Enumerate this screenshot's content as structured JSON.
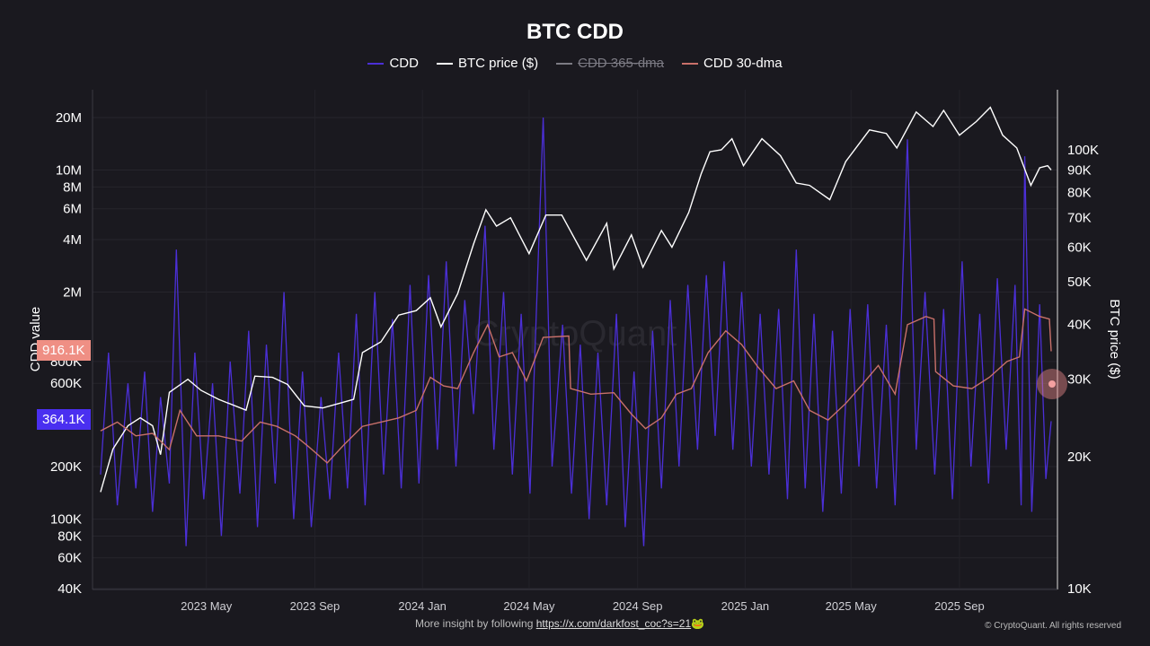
{
  "chart_data": {
    "type": "line",
    "title": "BTC CDD",
    "legend": [
      {
        "name": "CDD",
        "color": "#4b2fd6",
        "visible": true
      },
      {
        "name": "BTC price ($)",
        "color": "#ffffff",
        "visible": true
      },
      {
        "name": "CDD 365-dma",
        "color": "#7c7b84",
        "visible": false
      },
      {
        "name": "CDD 30-dma",
        "color": "#c9706a",
        "visible": true
      }
    ],
    "legend_position": "top",
    "ylabel_left": "CDD value",
    "ylabel_right": "BTC price ($)",
    "y_left_scale": "log",
    "y_left_ticks": [
      "40K",
      "60K",
      "80K",
      "100K",
      "200K",
      "600K",
      "800K",
      "2M",
      "4M",
      "6M",
      "8M",
      "10M",
      "20M"
    ],
    "y_left_tick_values": [
      40000,
      60000,
      80000,
      100000,
      200000,
      600000,
      800000,
      2000000,
      4000000,
      6000000,
      8000000,
      10000000,
      20000000
    ],
    "y_left_range": [
      40000,
      20000000
    ],
    "y_right_scale": "log",
    "y_right_ticks": [
      "10K",
      "20K",
      "30K",
      "40K",
      "50K",
      "60K",
      "70K",
      "80K",
      "90K",
      "100K"
    ],
    "y_right_tick_values": [
      10000,
      20000,
      30000,
      40000,
      50000,
      60000,
      70000,
      80000,
      90000,
      100000
    ],
    "x_ticks": [
      "2023 May",
      "2023 Sep",
      "2024 Jan",
      "2024 May",
      "2024 Sep",
      "2025 Jan",
      "2025 May",
      "2025 Sep"
    ],
    "x_tick_dates": [
      "2023-05-01",
      "2023-09-01",
      "2024-01-01",
      "2024-05-01",
      "2024-09-01",
      "2025-01-01",
      "2025-05-01",
      "2025-09-01"
    ],
    "x_range": [
      "2022-12-28",
      "2025-12-14"
    ],
    "grid": true,
    "current_labels": {
      "cdd_30dma": "916.1K",
      "cdd": "364.1K"
    },
    "series": [
      {
        "name": "CDD",
        "axis": "left",
        "points": [
          [
            "2023-01-01",
            180000
          ],
          [
            "2023-01-10",
            900000
          ],
          [
            "2023-01-20",
            120000
          ],
          [
            "2023-02-01",
            600000
          ],
          [
            "2023-02-10",
            150000
          ],
          [
            "2023-02-20",
            700000
          ],
          [
            "2023-03-01",
            110000
          ],
          [
            "2023-03-10",
            500000
          ],
          [
            "2023-03-20",
            160000
          ],
          [
            "2023-03-28",
            3500000
          ],
          [
            "2023-04-08",
            70000
          ],
          [
            "2023-04-18",
            900000
          ],
          [
            "2023-04-28",
            130000
          ],
          [
            "2023-05-08",
            600000
          ],
          [
            "2023-05-18",
            80000
          ],
          [
            "2023-05-28",
            800000
          ],
          [
            "2023-06-08",
            140000
          ],
          [
            "2023-06-18",
            1200000
          ],
          [
            "2023-06-28",
            90000
          ],
          [
            "2023-07-08",
            1000000
          ],
          [
            "2023-07-18",
            160000
          ],
          [
            "2023-07-28",
            2000000
          ],
          [
            "2023-08-08",
            100000
          ],
          [
            "2023-08-18",
            700000
          ],
          [
            "2023-08-28",
            90000
          ],
          [
            "2023-09-08",
            500000
          ],
          [
            "2023-09-18",
            130000
          ],
          [
            "2023-09-28",
            900000
          ],
          [
            "2023-10-08",
            150000
          ],
          [
            "2023-10-18",
            1500000
          ],
          [
            "2023-10-28",
            120000
          ],
          [
            "2023-11-08",
            2000000
          ],
          [
            "2023-11-18",
            180000
          ],
          [
            "2023-11-28",
            1400000
          ],
          [
            "2023-12-08",
            150000
          ],
          [
            "2023-12-18",
            2200000
          ],
          [
            "2023-12-28",
            160000
          ],
          [
            "2024-01-08",
            2500000
          ],
          [
            "2024-01-18",
            250000
          ],
          [
            "2024-01-28",
            3000000
          ],
          [
            "2024-02-08",
            200000
          ],
          [
            "2024-02-18",
            1800000
          ],
          [
            "2024-02-28",
            400000
          ],
          [
            "2024-03-12",
            4800000
          ],
          [
            "2024-03-22",
            250000
          ],
          [
            "2024-04-02",
            2000000
          ],
          [
            "2024-04-12",
            180000
          ],
          [
            "2024-04-22",
            1500000
          ],
          [
            "2024-05-02",
            140000
          ],
          [
            "2024-05-17",
            20000000
          ],
          [
            "2024-05-27",
            200000
          ],
          [
            "2024-06-08",
            1300000
          ],
          [
            "2024-06-18",
            140000
          ],
          [
            "2024-06-28",
            1000000
          ],
          [
            "2024-07-08",
            100000
          ],
          [
            "2024-07-18",
            900000
          ],
          [
            "2024-07-28",
            120000
          ],
          [
            "2024-08-08",
            1500000
          ],
          [
            "2024-08-18",
            90000
          ],
          [
            "2024-08-28",
            700000
          ],
          [
            "2024-09-08",
            70000
          ],
          [
            "2024-09-18",
            1200000
          ],
          [
            "2024-09-28",
            150000
          ],
          [
            "2024-10-08",
            1800000
          ],
          [
            "2024-10-18",
            200000
          ],
          [
            "2024-10-28",
            2200000
          ],
          [
            "2024-11-08",
            250000
          ],
          [
            "2024-11-18",
            2500000
          ],
          [
            "2024-11-28",
            300000
          ],
          [
            "2024-12-08",
            3000000
          ],
          [
            "2024-12-18",
            250000
          ],
          [
            "2024-12-28",
            2000000
          ],
          [
            "2025-01-08",
            200000
          ],
          [
            "2025-01-18",
            1500000
          ],
          [
            "2025-01-28",
            180000
          ],
          [
            "2025-02-08",
            1600000
          ],
          [
            "2025-02-18",
            130000
          ],
          [
            "2025-02-28",
            3500000
          ],
          [
            "2025-03-10",
            150000
          ],
          [
            "2025-03-20",
            1500000
          ],
          [
            "2025-03-30",
            110000
          ],
          [
            "2025-04-10",
            1200000
          ],
          [
            "2025-04-20",
            140000
          ],
          [
            "2025-04-30",
            1600000
          ],
          [
            "2025-05-10",
            200000
          ],
          [
            "2025-05-20",
            1700000
          ],
          [
            "2025-05-30",
            150000
          ],
          [
            "2025-06-10",
            1300000
          ],
          [
            "2025-06-20",
            120000
          ],
          [
            "2025-07-04",
            15000000
          ],
          [
            "2025-07-14",
            250000
          ],
          [
            "2025-07-24",
            2000000
          ],
          [
            "2025-08-04",
            180000
          ],
          [
            "2025-08-14",
            1600000
          ],
          [
            "2025-08-24",
            130000
          ],
          [
            "2025-09-04",
            3000000
          ],
          [
            "2025-09-14",
            200000
          ],
          [
            "2025-09-24",
            1500000
          ],
          [
            "2025-10-04",
            160000
          ],
          [
            "2025-10-14",
            2400000
          ],
          [
            "2025-10-24",
            250000
          ],
          [
            "2025-11-03",
            2200000
          ],
          [
            "2025-11-10",
            120000
          ],
          [
            "2025-11-14",
            12000000
          ],
          [
            "2025-11-22",
            110000
          ],
          [
            "2025-12-01",
            1700000
          ],
          [
            "2025-12-08",
            170000
          ],
          [
            "2025-12-14",
            364100
          ]
        ]
      },
      {
        "name": "BTC price ($)",
        "axis": "right",
        "points": [
          [
            "2023-01-01",
            16600
          ],
          [
            "2023-01-15",
            20800
          ],
          [
            "2023-02-01",
            23500
          ],
          [
            "2023-02-15",
            24500
          ],
          [
            "2023-03-01",
            23500
          ],
          [
            "2023-03-10",
            20200
          ],
          [
            "2023-03-20",
            28000
          ],
          [
            "2023-04-10",
            30000
          ],
          [
            "2023-04-25",
            28300
          ],
          [
            "2023-05-15",
            27000
          ],
          [
            "2023-06-15",
            25500
          ],
          [
            "2023-06-25",
            30500
          ],
          [
            "2023-07-15",
            30300
          ],
          [
            "2023-08-01",
            29200
          ],
          [
            "2023-08-20",
            26100
          ],
          [
            "2023-09-10",
            25800
          ],
          [
            "2023-09-25",
            26300
          ],
          [
            "2023-10-15",
            27000
          ],
          [
            "2023-10-25",
            34500
          ],
          [
            "2023-11-15",
            36500
          ],
          [
            "2023-12-05",
            42000
          ],
          [
            "2023-12-25",
            43000
          ],
          [
            "2024-01-10",
            46000
          ],
          [
            "2024-01-22",
            39500
          ],
          [
            "2024-02-10",
            47000
          ],
          [
            "2024-02-28",
            61000
          ],
          [
            "2024-03-13",
            73000
          ],
          [
            "2024-03-25",
            67000
          ],
          [
            "2024-04-10",
            70000
          ],
          [
            "2024-04-20",
            64000
          ],
          [
            "2024-05-01",
            58000
          ],
          [
            "2024-05-20",
            71000
          ],
          [
            "2024-06-07",
            71000
          ],
          [
            "2024-06-25",
            61000
          ],
          [
            "2024-07-05",
            56000
          ],
          [
            "2024-07-28",
            68000
          ],
          [
            "2024-08-05",
            53500
          ],
          [
            "2024-08-25",
            64000
          ],
          [
            "2024-09-07",
            54000
          ],
          [
            "2024-09-28",
            65500
          ],
          [
            "2024-10-10",
            60000
          ],
          [
            "2024-10-29",
            72000
          ],
          [
            "2024-11-12",
            88000
          ],
          [
            "2024-11-22",
            99000
          ],
          [
            "2024-12-05",
            100000
          ],
          [
            "2024-12-17",
            106000
          ],
          [
            "2024-12-30",
            92000
          ],
          [
            "2025-01-20",
            106000
          ],
          [
            "2025-02-10",
            97000
          ],
          [
            "2025-02-28",
            84000
          ],
          [
            "2025-03-15",
            83000
          ],
          [
            "2025-04-07",
            77000
          ],
          [
            "2025-04-25",
            94000
          ],
          [
            "2025-05-22",
            111000
          ],
          [
            "2025-06-10",
            109000
          ],
          [
            "2025-06-22",
            101000
          ],
          [
            "2025-07-14",
            122000
          ],
          [
            "2025-08-02",
            113000
          ],
          [
            "2025-08-14",
            123000
          ],
          [
            "2025-09-01",
            108000
          ],
          [
            "2025-09-20",
            116000
          ],
          [
            "2025-10-06",
            125000
          ],
          [
            "2025-10-20",
            108000
          ],
          [
            "2025-11-05",
            101000
          ],
          [
            "2025-11-21",
            83000
          ],
          [
            "2025-12-01",
            91000
          ],
          [
            "2025-12-10",
            92000
          ],
          [
            "2025-12-14",
            90000
          ]
        ]
      },
      {
        "name": "CDD 30-dma",
        "axis": "left",
        "points": [
          [
            "2023-01-01",
            320000
          ],
          [
            "2023-01-20",
            360000
          ],
          [
            "2023-02-10",
            300000
          ],
          [
            "2023-03-01",
            310000
          ],
          [
            "2023-03-20",
            250000
          ],
          [
            "2023-04-01",
            420000
          ],
          [
            "2023-04-20",
            300000
          ],
          [
            "2023-05-15",
            300000
          ],
          [
            "2023-06-10",
            280000
          ],
          [
            "2023-07-01",
            360000
          ],
          [
            "2023-07-20",
            340000
          ],
          [
            "2023-08-10",
            300000
          ],
          [
            "2023-08-25",
            260000
          ],
          [
            "2023-09-15",
            210000
          ],
          [
            "2023-10-05",
            270000
          ],
          [
            "2023-10-25",
            340000
          ],
          [
            "2023-11-15",
            360000
          ],
          [
            "2023-12-05",
            380000
          ],
          [
            "2023-12-25",
            420000
          ],
          [
            "2024-01-10",
            650000
          ],
          [
            "2024-01-25",
            580000
          ],
          [
            "2024-02-10",
            560000
          ],
          [
            "2024-02-28",
            900000
          ],
          [
            "2024-03-15",
            1300000
          ],
          [
            "2024-03-28",
            850000
          ],
          [
            "2024-04-12",
            900000
          ],
          [
            "2024-04-28",
            620000
          ],
          [
            "2024-05-17",
            1100000
          ],
          [
            "2024-06-15",
            1120000
          ],
          [
            "2024-06-17",
            560000
          ],
          [
            "2024-07-10",
            520000
          ],
          [
            "2024-08-05",
            530000
          ],
          [
            "2024-08-25",
            400000
          ],
          [
            "2024-09-10",
            330000
          ],
          [
            "2024-09-28",
            380000
          ],
          [
            "2024-10-15",
            520000
          ],
          [
            "2024-11-01",
            560000
          ],
          [
            "2024-11-20",
            900000
          ],
          [
            "2024-12-10",
            1200000
          ],
          [
            "2024-12-28",
            1000000
          ],
          [
            "2025-01-15",
            750000
          ],
          [
            "2025-02-05",
            560000
          ],
          [
            "2025-02-25",
            620000
          ],
          [
            "2025-03-15",
            420000
          ],
          [
            "2025-04-05",
            370000
          ],
          [
            "2025-04-25",
            460000
          ],
          [
            "2025-05-15",
            600000
          ],
          [
            "2025-06-01",
            760000
          ],
          [
            "2025-06-20",
            520000
          ],
          [
            "2025-07-04",
            1300000
          ],
          [
            "2025-07-25",
            1450000
          ],
          [
            "2025-08-03",
            1400000
          ],
          [
            "2025-08-05",
            700000
          ],
          [
            "2025-08-25",
            580000
          ],
          [
            "2025-09-15",
            560000
          ],
          [
            "2025-10-05",
            650000
          ],
          [
            "2025-10-25",
            800000
          ],
          [
            "2025-11-08",
            850000
          ],
          [
            "2025-11-14",
            1600000
          ],
          [
            "2025-12-01",
            1450000
          ],
          [
            "2025-12-12",
            1400000
          ],
          [
            "2025-12-14",
            916100
          ]
        ]
      }
    ]
  },
  "footer": {
    "text": "More insight by following ",
    "link": "https://x.com/darkfost_coc?s=21",
    "copyright": "© CryptoQuant. All rights reserved"
  },
  "watermark": "CryptoQuant"
}
